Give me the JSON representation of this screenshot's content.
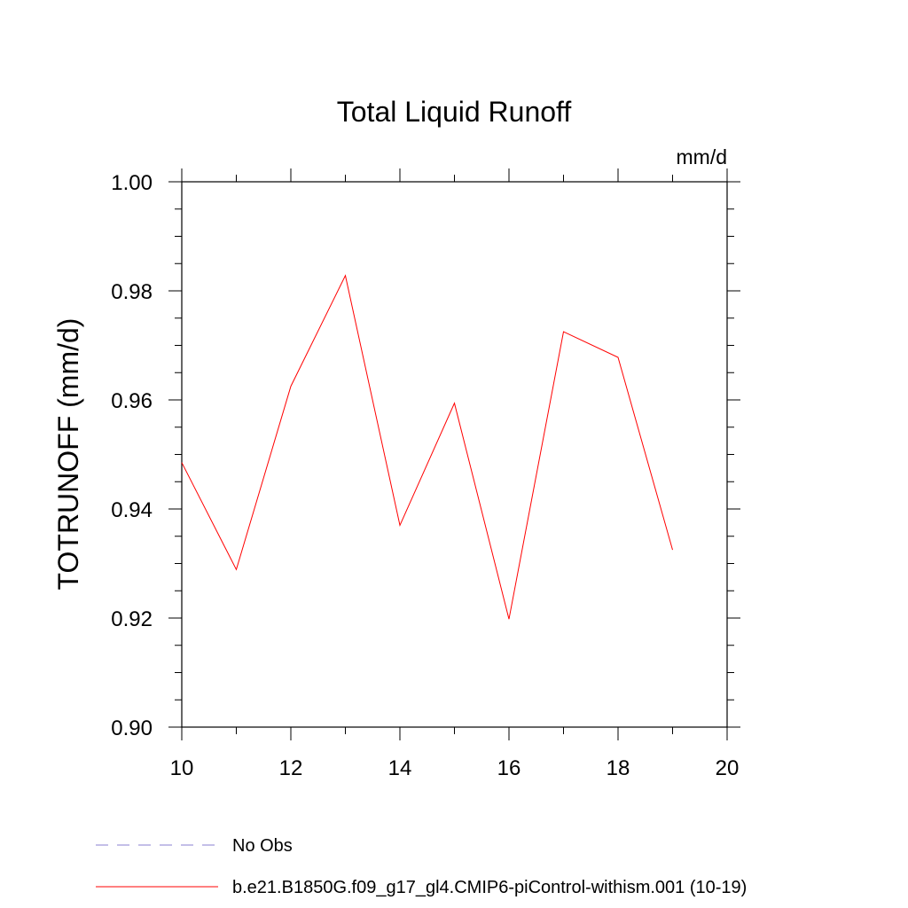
{
  "chart_data": {
    "type": "line",
    "title": "Total Liquid Runoff",
    "units": "mm/d",
    "ylabel": "TOTRUNOFF  (mm/d)",
    "xlabel": "",
    "xlim": [
      10,
      20
    ],
    "ylim": [
      0.9,
      1.0
    ],
    "xticks": [
      "10",
      "12",
      "14",
      "16",
      "18",
      "20"
    ],
    "yticks": [
      "0.90",
      "0.92",
      "0.94",
      "0.96",
      "0.98",
      "1.00"
    ],
    "grid": false,
    "legend_position": "bottom-left",
    "series": [
      {
        "name": "b.e21.B1850G.f09_g17_gl4.CMIP6-piControl-withism.001 (10-19)",
        "color": "#ff0000",
        "style": "solid",
        "x": [
          10,
          11,
          12,
          13,
          14,
          15,
          16,
          17,
          18,
          19
        ],
        "y": [
          0.9485,
          0.9289,
          0.9625,
          0.9828,
          0.937,
          0.9594,
          0.9198,
          0.9725,
          0.9678,
          0.9325
        ]
      },
      {
        "name": "No Obs",
        "color": "#8a7fd0",
        "style": "dashed",
        "x": [],
        "y": []
      }
    ]
  }
}
